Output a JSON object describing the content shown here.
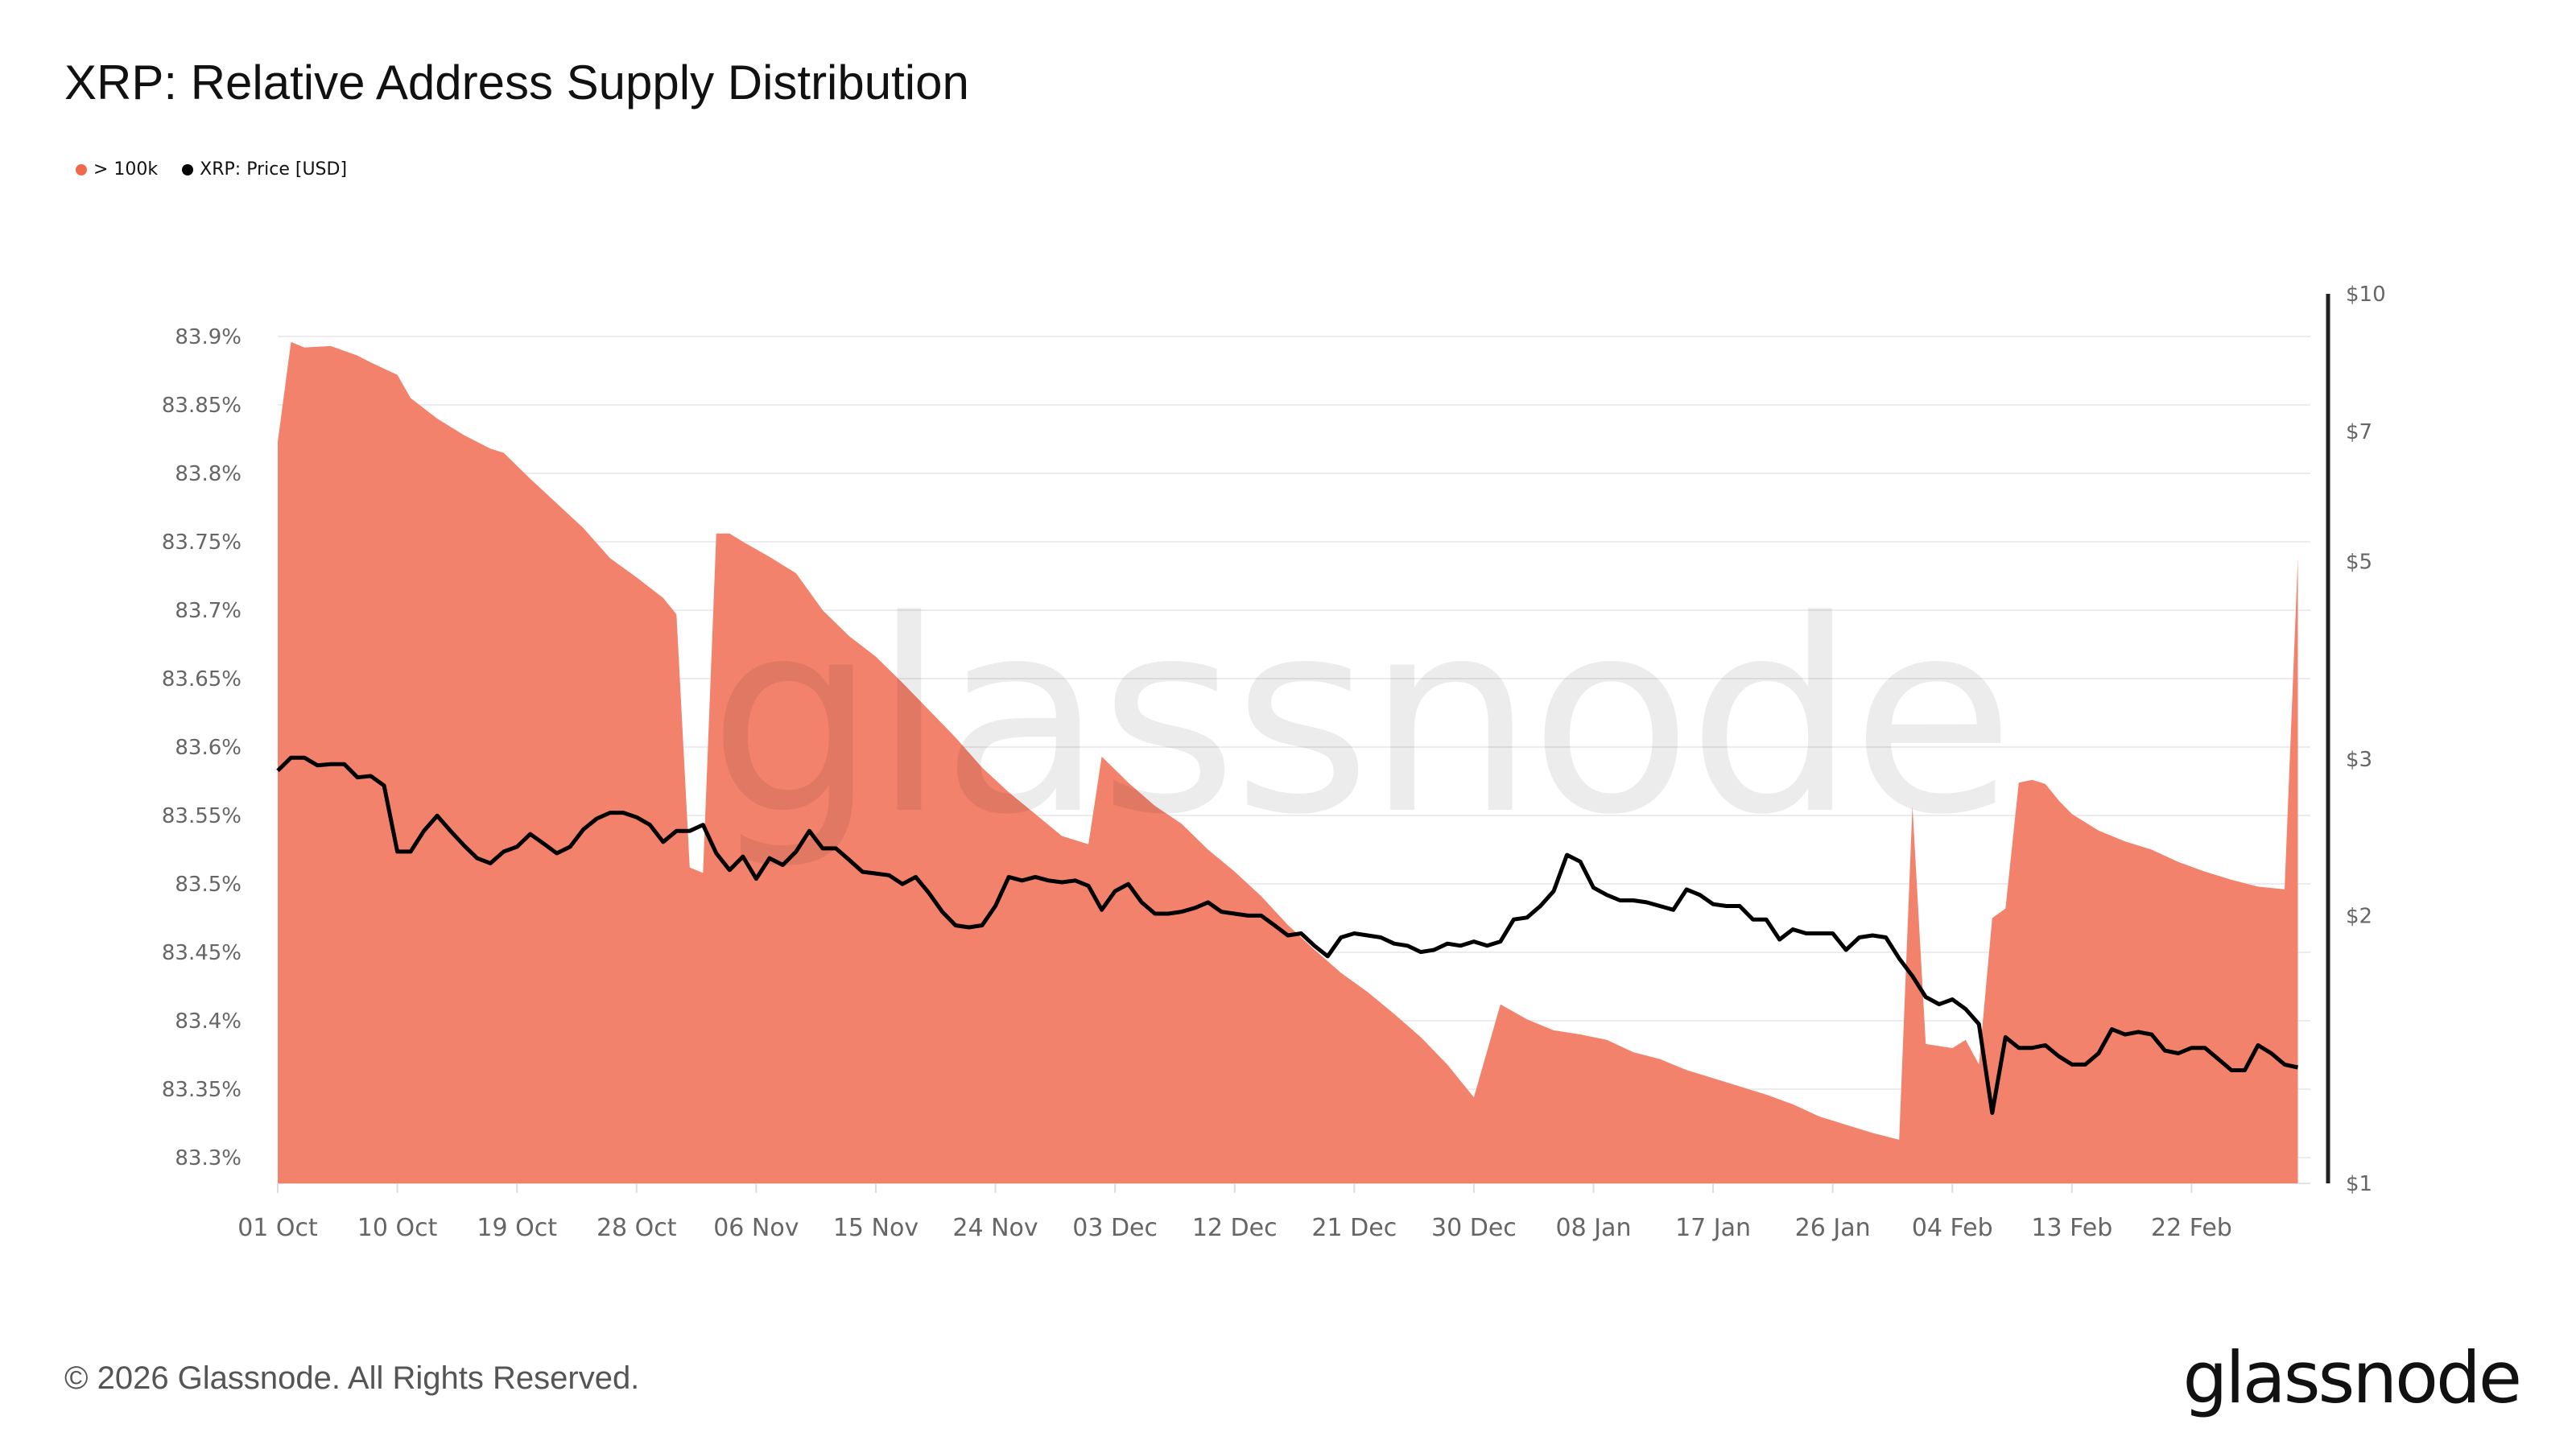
{
  "title": "XRP: Relative Address Supply Distribution",
  "legend": [
    {
      "label": "> 100k",
      "color": "#ef6a4c"
    },
    {
      "label": "XRP: Price [USD]",
      "color": "#000000"
    }
  ],
  "watermark": "glassnode",
  "footer": "© 2026 Glassnode. All Rights Reserved.",
  "logo": "glassnode",
  "chart_data": {
    "type": "area",
    "title": "XRP: Relative Address Supply Distribution",
    "grid": true,
    "legend_position": "top-left",
    "x_ticks": [
      "01 Oct",
      "10 Oct",
      "19 Oct",
      "28 Oct",
      "06 Nov",
      "15 Nov",
      "24 Nov",
      "03 Dec",
      "12 Dec",
      "21 Dec",
      "30 Dec",
      "08 Jan",
      "17 Jan",
      "26 Jan",
      "04 Feb",
      "13 Feb",
      "22 Feb"
    ],
    "y_left": {
      "ticks": [
        "83.3%",
        "83.35%",
        "83.4%",
        "83.45%",
        "83.5%",
        "83.55%",
        "83.6%",
        "83.65%",
        "83.7%",
        "83.75%",
        "83.8%",
        "83.85%",
        "83.9%"
      ],
      "range": [
        83.28,
        83.93
      ]
    },
    "y_right": {
      "scale": "log",
      "ticks": [
        "$1",
        "$2",
        "$3",
        "$5",
        "$7",
        "$10"
      ],
      "range": [
        1,
        10
      ]
    },
    "series": [
      {
        "name": "> 100k",
        "type": "area",
        "axis": "left",
        "color": "#f2826b",
        "points": [
          [
            "01 Oct",
            83.823
          ],
          [
            "02 Oct",
            83.896
          ],
          [
            "03 Oct",
            83.892
          ],
          [
            "05 Oct",
            83.893
          ],
          [
            "07 Oct",
            83.886
          ],
          [
            "08 Oct",
            83.881
          ],
          [
            "10 Oct",
            83.872
          ],
          [
            "11 Oct",
            83.855
          ],
          [
            "13 Oct",
            83.84
          ],
          [
            "15 Oct",
            83.828
          ],
          [
            "17 Oct",
            83.818
          ],
          [
            "18 Oct",
            83.815
          ],
          [
            "20 Oct",
            83.796
          ],
          [
            "22 Oct",
            83.778
          ],
          [
            "24 Oct",
            83.76
          ],
          [
            "26 Oct",
            83.738
          ],
          [
            "28 Oct",
            83.724
          ],
          [
            "30 Oct",
            83.709
          ],
          [
            "31 Oct",
            83.697
          ],
          [
            "01 Nov",
            83.512
          ],
          [
            "02 Nov",
            83.508
          ],
          [
            "03 Nov",
            83.756
          ],
          [
            "04 Nov",
            83.756
          ],
          [
            "05 Nov",
            83.75
          ],
          [
            "07 Nov",
            83.739
          ],
          [
            "09 Nov",
            83.727
          ],
          [
            "11 Nov",
            83.7
          ],
          [
            "13 Nov",
            83.681
          ],
          [
            "15 Nov",
            83.666
          ],
          [
            "17 Nov",
            83.647
          ],
          [
            "19 Nov",
            83.627
          ],
          [
            "21 Nov",
            83.607
          ],
          [
            "23 Nov",
            83.585
          ],
          [
            "25 Nov",
            83.567
          ],
          [
            "27 Nov",
            83.551
          ],
          [
            "29 Nov",
            83.535
          ],
          [
            "01 Dec",
            83.529
          ],
          [
            "02 Dec",
            83.593
          ],
          [
            "04 Dec",
            83.574
          ],
          [
            "06 Dec",
            83.557
          ],
          [
            "08 Dec",
            83.544
          ],
          [
            "10 Dec",
            83.525
          ],
          [
            "12 Dec",
            83.509
          ],
          [
            "14 Dec",
            83.491
          ],
          [
            "16 Dec",
            83.47
          ],
          [
            "18 Dec",
            83.452
          ],
          [
            "20 Dec",
            83.435
          ],
          [
            "22 Dec",
            83.421
          ],
          [
            "24 Dec",
            83.405
          ],
          [
            "26 Dec",
            83.388
          ],
          [
            "28 Dec",
            83.368
          ],
          [
            "30 Dec",
            83.344
          ],
          [
            "01 Jan",
            83.412
          ],
          [
            "03 Jan",
            83.401
          ],
          [
            "05 Jan",
            83.393
          ],
          [
            "07 Jan",
            83.39
          ],
          [
            "09 Jan",
            83.386
          ],
          [
            "11 Jan",
            83.377
          ],
          [
            "13 Jan",
            83.372
          ],
          [
            "15 Jan",
            83.364
          ],
          [
            "17 Jan",
            83.358
          ],
          [
            "19 Jan",
            83.352
          ],
          [
            "21 Jan",
            83.346
          ],
          [
            "23 Jan",
            83.339
          ],
          [
            "25 Jan",
            83.33
          ],
          [
            "27 Jan",
            83.324
          ],
          [
            "29 Jan",
            83.318
          ],
          [
            "31 Jan",
            83.313
          ],
          [
            "01 Feb",
            83.557
          ],
          [
            "02 Feb",
            83.383
          ],
          [
            "04 Feb",
            83.38
          ],
          [
            "05 Feb",
            83.386
          ],
          [
            "06 Feb",
            83.368
          ],
          [
            "07 Feb",
            83.475
          ],
          [
            "08 Feb",
            83.482
          ],
          [
            "09 Feb",
            83.574
          ],
          [
            "10 Feb",
            83.576
          ],
          [
            "11 Feb",
            83.573
          ],
          [
            "12 Feb",
            83.561
          ],
          [
            "13 Feb",
            83.551
          ],
          [
            "15 Feb",
            83.539
          ],
          [
            "17 Feb",
            83.531
          ],
          [
            "19 Feb",
            83.525
          ],
          [
            "21 Feb",
            83.516
          ],
          [
            "23 Feb",
            83.509
          ],
          [
            "25 Feb",
            83.503
          ],
          [
            "27 Feb",
            83.498
          ],
          [
            "01 Mar",
            83.496
          ],
          [
            "02 Mar",
            83.738
          ]
        ]
      },
      {
        "name": "XRP: Price [USD]",
        "type": "line",
        "axis": "right",
        "color": "#000000",
        "points": [
          [
            "01 Oct",
            2.91
          ],
          [
            "02 Oct",
            3.01
          ],
          [
            "03 Oct",
            3.01
          ],
          [
            "04 Oct",
            2.95
          ],
          [
            "05 Oct",
            2.96
          ],
          [
            "06 Oct",
            2.96
          ],
          [
            "07 Oct",
            2.86
          ],
          [
            "08 Oct",
            2.87
          ],
          [
            "09 Oct",
            2.8
          ],
          [
            "10 Oct",
            2.36
          ],
          [
            "11 Oct",
            2.36
          ],
          [
            "12 Oct",
            2.49
          ],
          [
            "13 Oct",
            2.59
          ],
          [
            "14 Oct",
            2.49
          ],
          [
            "15 Oct",
            2.4
          ],
          [
            "16 Oct",
            2.32
          ],
          [
            "17 Oct",
            2.29
          ],
          [
            "18 Oct",
            2.36
          ],
          [
            "19 Oct",
            2.39
          ],
          [
            "20 Oct",
            2.47
          ],
          [
            "21 Oct",
            2.41
          ],
          [
            "22 Oct",
            2.35
          ],
          [
            "23 Oct",
            2.39
          ],
          [
            "24 Oct",
            2.5
          ],
          [
            "25 Oct",
            2.57
          ],
          [
            "26 Oct",
            2.61
          ],
          [
            "27 Oct",
            2.61
          ],
          [
            "28 Oct",
            2.58
          ],
          [
            "29 Oct",
            2.53
          ],
          [
            "30 Oct",
            2.42
          ],
          [
            "31 Oct",
            2.49
          ],
          [
            "01 Nov",
            2.49
          ],
          [
            "02 Nov",
            2.53
          ],
          [
            "03 Nov",
            2.35
          ],
          [
            "04 Nov",
            2.25
          ],
          [
            "05 Nov",
            2.33
          ],
          [
            "06 Nov",
            2.2
          ],
          [
            "07 Nov",
            2.32
          ],
          [
            "08 Nov",
            2.28
          ],
          [
            "09 Nov",
            2.36
          ],
          [
            "10 Nov",
            2.49
          ],
          [
            "11 Nov",
            2.38
          ],
          [
            "12 Nov",
            2.38
          ],
          [
            "13 Nov",
            2.31
          ],
          [
            "14 Nov",
            2.24
          ],
          [
            "15 Nov",
            2.23
          ],
          [
            "16 Nov",
            2.22
          ],
          [
            "17 Nov",
            2.17
          ],
          [
            "18 Nov",
            2.21
          ],
          [
            "19 Nov",
            2.12
          ],
          [
            "20 Nov",
            2.02
          ],
          [
            "21 Nov",
            1.95
          ],
          [
            "22 Nov",
            1.94
          ],
          [
            "23 Nov",
            1.95
          ],
          [
            "24 Nov",
            2.05
          ],
          [
            "25 Nov",
            2.21
          ],
          [
            "26 Nov",
            2.19
          ],
          [
            "27 Nov",
            2.21
          ],
          [
            "28 Nov",
            2.19
          ],
          [
            "29 Nov",
            2.18
          ],
          [
            "30 Nov",
            2.19
          ],
          [
            "01 Dec",
            2.16
          ],
          [
            "02 Dec",
            2.03
          ],
          [
            "03 Dec",
            2.13
          ],
          [
            "04 Dec",
            2.17
          ],
          [
            "05 Dec",
            2.07
          ],
          [
            "06 Dec",
            2.01
          ],
          [
            "07 Dec",
            2.01
          ],
          [
            "08 Dec",
            2.02
          ],
          [
            "09 Dec",
            2.04
          ],
          [
            "10 Dec",
            2.07
          ],
          [
            "11 Dec",
            2.02
          ],
          [
            "12 Dec",
            2.01
          ],
          [
            "13 Dec",
            2.0
          ],
          [
            "14 Dec",
            2.0
          ],
          [
            "15 Dec",
            1.95
          ],
          [
            "16 Dec",
            1.9
          ],
          [
            "17 Dec",
            1.91
          ],
          [
            "18 Dec",
            1.85
          ],
          [
            "19 Dec",
            1.8
          ],
          [
            "20 Dec",
            1.89
          ],
          [
            "21 Dec",
            1.91
          ],
          [
            "22 Dec",
            1.9
          ],
          [
            "23 Dec",
            1.89
          ],
          [
            "24 Dec",
            1.86
          ],
          [
            "25 Dec",
            1.85
          ],
          [
            "26 Dec",
            1.82
          ],
          [
            "27 Dec",
            1.83
          ],
          [
            "28 Dec",
            1.86
          ],
          [
            "29 Dec",
            1.85
          ],
          [
            "30 Dec",
            1.87
          ],
          [
            "31 Dec",
            1.85
          ],
          [
            "01 Jan",
            1.87
          ],
          [
            "02 Jan",
            1.98
          ],
          [
            "03 Jan",
            1.99
          ],
          [
            "04 Jan",
            2.05
          ],
          [
            "05 Jan",
            2.13
          ],
          [
            "06 Jan",
            2.34
          ],
          [
            "07 Jan",
            2.3
          ],
          [
            "08 Jan",
            2.15
          ],
          [
            "09 Jan",
            2.11
          ],
          [
            "10 Jan",
            2.08
          ],
          [
            "11 Jan",
            2.08
          ],
          [
            "12 Jan",
            2.07
          ],
          [
            "13 Jan",
            2.05
          ],
          [
            "14 Jan",
            2.03
          ],
          [
            "15 Jan",
            2.14
          ],
          [
            "16 Jan",
            2.11
          ],
          [
            "17 Jan",
            2.06
          ],
          [
            "18 Jan",
            2.05
          ],
          [
            "19 Jan",
            2.05
          ],
          [
            "20 Jan",
            1.98
          ],
          [
            "21 Jan",
            1.98
          ],
          [
            "22 Jan",
            1.88
          ],
          [
            "23 Jan",
            1.93
          ],
          [
            "24 Jan",
            1.91
          ],
          [
            "25 Jan",
            1.91
          ],
          [
            "26 Jan",
            1.91
          ],
          [
            "27 Jan",
            1.83
          ],
          [
            "28 Jan",
            1.89
          ],
          [
            "29 Jan",
            1.9
          ],
          [
            "30 Jan",
            1.89
          ],
          [
            "31 Jan",
            1.79
          ],
          [
            "01 Feb",
            1.71
          ],
          [
            "02 Feb",
            1.62
          ],
          [
            "03 Feb",
            1.59
          ],
          [
            "04 Feb",
            1.61
          ],
          [
            "05 Feb",
            1.57
          ],
          [
            "06 Feb",
            1.51
          ],
          [
            "07 Feb",
            1.2
          ],
          [
            "08 Feb",
            1.46
          ],
          [
            "09 Feb",
            1.42
          ],
          [
            "10 Feb",
            1.42
          ],
          [
            "11 Feb",
            1.43
          ],
          [
            "12 Feb",
            1.39
          ],
          [
            "13 Feb",
            1.36
          ],
          [
            "14 Feb",
            1.36
          ],
          [
            "15 Feb",
            1.4
          ],
          [
            "16 Feb",
            1.49
          ],
          [
            "17 Feb",
            1.47
          ],
          [
            "18 Feb",
            1.48
          ],
          [
            "19 Feb",
            1.47
          ],
          [
            "20 Feb",
            1.41
          ],
          [
            "21 Feb",
            1.4
          ],
          [
            "22 Feb",
            1.42
          ],
          [
            "23 Feb",
            1.42
          ],
          [
            "24 Feb",
            1.38
          ],
          [
            "25 Feb",
            1.34
          ],
          [
            "26 Feb",
            1.34
          ],
          [
            "27 Feb",
            1.43
          ],
          [
            "28 Feb",
            1.4
          ],
          [
            "01 Mar",
            1.36
          ],
          [
            "02 Mar",
            1.35
          ]
        ]
      }
    ]
  }
}
